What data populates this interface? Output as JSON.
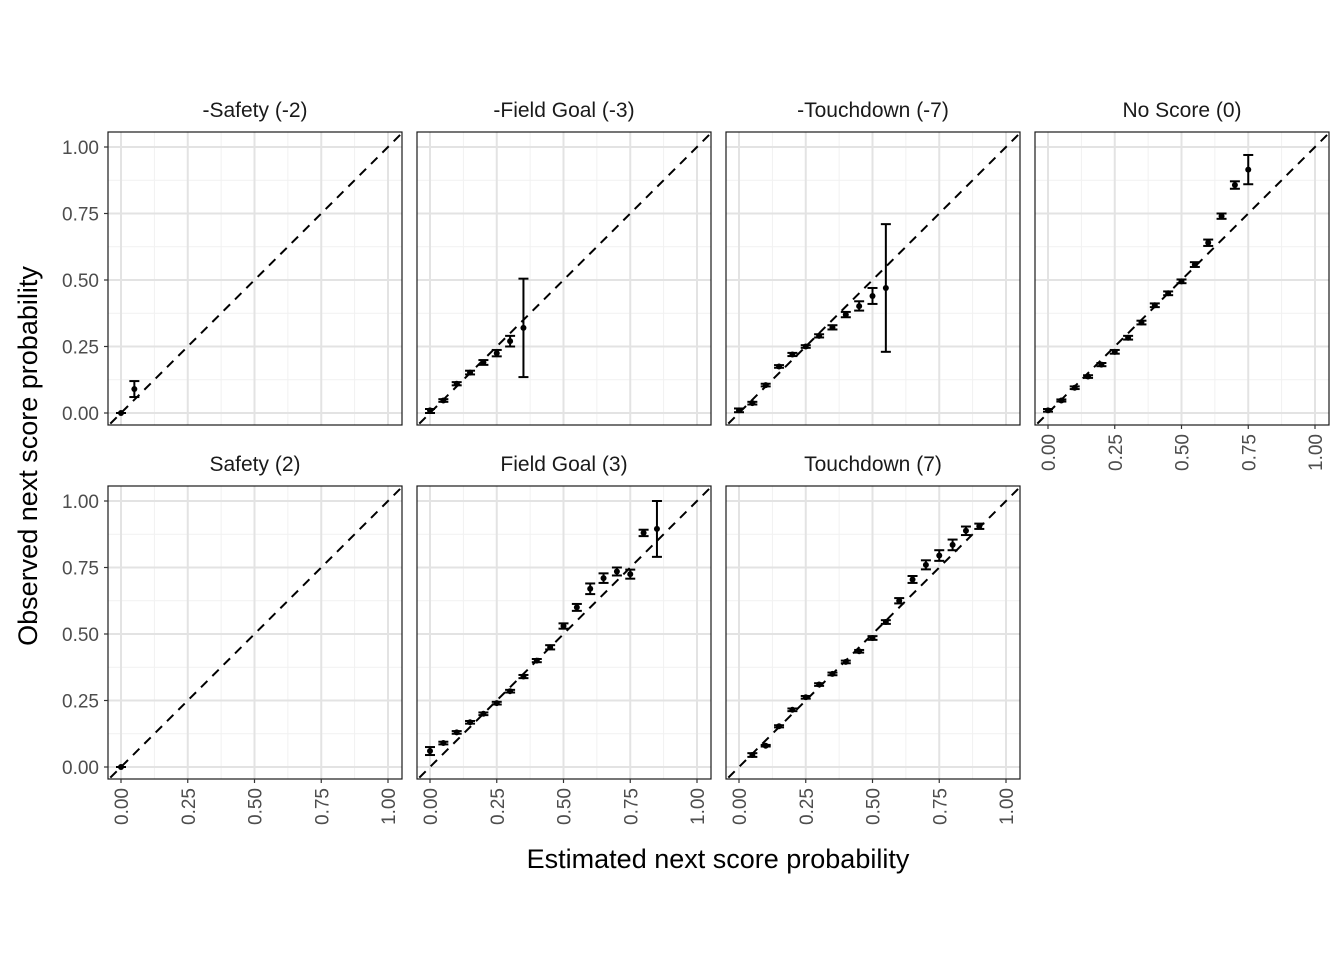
{
  "chart_data": {
    "type": "scatter",
    "layout": "facet-grid 2 rows x 4 columns, shared axes",
    "xlabel": "Estimated next score probability",
    "ylabel": "Observed next score probability",
    "xlim": [
      0,
      1
    ],
    "ylim": [
      0,
      1
    ],
    "ticks": [
      0,
      0.25,
      0.5,
      0.75,
      1
    ],
    "tick_labels": [
      "0.00",
      "0.25",
      "0.50",
      "0.75",
      "1.00"
    ],
    "reference_line": "y = x (dashed)",
    "grid": true,
    "colors": {
      "points": "#000000",
      "grid": "#e3e3e3",
      "frame": "#1a1a1a"
    },
    "panels": [
      {
        "title": "-Safety (-2)",
        "points": [
          {
            "x": 0.0,
            "y": 0.0,
            "lo": 0.0,
            "hi": 0.0
          },
          {
            "x": 0.05,
            "y": 0.09,
            "lo": 0.06,
            "hi": 0.12
          }
        ]
      },
      {
        "title": "-Field Goal (-3)",
        "points": [
          {
            "x": 0.0,
            "y": 0.01,
            "lo": 0.0,
            "hi": 0.015
          },
          {
            "x": 0.05,
            "y": 0.047,
            "lo": 0.042,
            "hi": 0.052
          },
          {
            "x": 0.1,
            "y": 0.11,
            "lo": 0.104,
            "hi": 0.116
          },
          {
            "x": 0.15,
            "y": 0.152,
            "lo": 0.145,
            "hi": 0.159
          },
          {
            "x": 0.2,
            "y": 0.19,
            "lo": 0.181,
            "hi": 0.199
          },
          {
            "x": 0.25,
            "y": 0.225,
            "lo": 0.213,
            "hi": 0.237
          },
          {
            "x": 0.3,
            "y": 0.27,
            "lo": 0.25,
            "hi": 0.29
          },
          {
            "x": 0.35,
            "y": 0.32,
            "lo": 0.135,
            "hi": 0.505
          }
        ]
      },
      {
        "title": "-Touchdown (-7)",
        "points": [
          {
            "x": 0.0,
            "y": 0.01,
            "lo": 0.003,
            "hi": 0.017
          },
          {
            "x": 0.05,
            "y": 0.037,
            "lo": 0.032,
            "hi": 0.042
          },
          {
            "x": 0.1,
            "y": 0.105,
            "lo": 0.1,
            "hi": 0.11
          },
          {
            "x": 0.15,
            "y": 0.175,
            "lo": 0.17,
            "hi": 0.18
          },
          {
            "x": 0.2,
            "y": 0.22,
            "lo": 0.214,
            "hi": 0.226
          },
          {
            "x": 0.25,
            "y": 0.25,
            "lo": 0.245,
            "hi": 0.255
          },
          {
            "x": 0.3,
            "y": 0.29,
            "lo": 0.284,
            "hi": 0.296
          },
          {
            "x": 0.35,
            "y": 0.322,
            "lo": 0.314,
            "hi": 0.33
          },
          {
            "x": 0.4,
            "y": 0.37,
            "lo": 0.36,
            "hi": 0.38
          },
          {
            "x": 0.45,
            "y": 0.402,
            "lo": 0.385,
            "hi": 0.42
          },
          {
            "x": 0.5,
            "y": 0.44,
            "lo": 0.41,
            "hi": 0.47
          },
          {
            "x": 0.55,
            "y": 0.47,
            "lo": 0.23,
            "hi": 0.71
          }
        ]
      },
      {
        "title": "No Score (0)",
        "points": [
          {
            "x": 0.0,
            "y": 0.01,
            "lo": 0.005,
            "hi": 0.015
          },
          {
            "x": 0.05,
            "y": 0.047,
            "lo": 0.043,
            "hi": 0.051
          },
          {
            "x": 0.1,
            "y": 0.095,
            "lo": 0.09,
            "hi": 0.1
          },
          {
            "x": 0.15,
            "y": 0.137,
            "lo": 0.132,
            "hi": 0.142
          },
          {
            "x": 0.2,
            "y": 0.182,
            "lo": 0.176,
            "hi": 0.188
          },
          {
            "x": 0.25,
            "y": 0.23,
            "lo": 0.223,
            "hi": 0.237
          },
          {
            "x": 0.3,
            "y": 0.283,
            "lo": 0.276,
            "hi": 0.29
          },
          {
            "x": 0.35,
            "y": 0.34,
            "lo": 0.333,
            "hi": 0.347
          },
          {
            "x": 0.4,
            "y": 0.405,
            "lo": 0.398,
            "hi": 0.412
          },
          {
            "x": 0.45,
            "y": 0.45,
            "lo": 0.443,
            "hi": 0.457
          },
          {
            "x": 0.5,
            "y": 0.495,
            "lo": 0.488,
            "hi": 0.502
          },
          {
            "x": 0.55,
            "y": 0.558,
            "lo": 0.549,
            "hi": 0.567
          },
          {
            "x": 0.6,
            "y": 0.64,
            "lo": 0.628,
            "hi": 0.652
          },
          {
            "x": 0.65,
            "y": 0.74,
            "lo": 0.73,
            "hi": 0.75
          },
          {
            "x": 0.7,
            "y": 0.857,
            "lo": 0.843,
            "hi": 0.871
          },
          {
            "x": 0.75,
            "y": 0.915,
            "lo": 0.86,
            "hi": 0.97
          }
        ]
      },
      {
        "title": "Safety (2)",
        "points": [
          {
            "x": 0.0,
            "y": 0.0,
            "lo": 0.0,
            "hi": 0.0
          }
        ]
      },
      {
        "title": "Field Goal (3)",
        "points": [
          {
            "x": 0.0,
            "y": 0.06,
            "lo": 0.045,
            "hi": 0.075
          },
          {
            "x": 0.05,
            "y": 0.09,
            "lo": 0.085,
            "hi": 0.095
          },
          {
            "x": 0.1,
            "y": 0.13,
            "lo": 0.125,
            "hi": 0.135
          },
          {
            "x": 0.15,
            "y": 0.168,
            "lo": 0.163,
            "hi": 0.173
          },
          {
            "x": 0.2,
            "y": 0.2,
            "lo": 0.195,
            "hi": 0.205
          },
          {
            "x": 0.25,
            "y": 0.24,
            "lo": 0.235,
            "hi": 0.245
          },
          {
            "x": 0.3,
            "y": 0.285,
            "lo": 0.28,
            "hi": 0.29
          },
          {
            "x": 0.35,
            "y": 0.34,
            "lo": 0.334,
            "hi": 0.346
          },
          {
            "x": 0.4,
            "y": 0.4,
            "lo": 0.394,
            "hi": 0.406
          },
          {
            "x": 0.45,
            "y": 0.45,
            "lo": 0.442,
            "hi": 0.458
          },
          {
            "x": 0.5,
            "y": 0.53,
            "lo": 0.52,
            "hi": 0.54
          },
          {
            "x": 0.55,
            "y": 0.6,
            "lo": 0.587,
            "hi": 0.613
          },
          {
            "x": 0.6,
            "y": 0.67,
            "lo": 0.65,
            "hi": 0.69
          },
          {
            "x": 0.65,
            "y": 0.71,
            "lo": 0.692,
            "hi": 0.728
          },
          {
            "x": 0.7,
            "y": 0.735,
            "lo": 0.72,
            "hi": 0.75
          },
          {
            "x": 0.75,
            "y": 0.725,
            "lo": 0.708,
            "hi": 0.742
          },
          {
            "x": 0.8,
            "y": 0.88,
            "lo": 0.868,
            "hi": 0.892
          },
          {
            "x": 0.85,
            "y": 0.895,
            "lo": 0.79,
            "hi": 1.0
          }
        ]
      },
      {
        "title": "Touchdown (7)",
        "points": [
          {
            "x": 0.05,
            "y": 0.045,
            "lo": 0.038,
            "hi": 0.052
          },
          {
            "x": 0.1,
            "y": 0.08,
            "lo": 0.077,
            "hi": 0.083
          },
          {
            "x": 0.15,
            "y": 0.153,
            "lo": 0.149,
            "hi": 0.157
          },
          {
            "x": 0.2,
            "y": 0.215,
            "lo": 0.21,
            "hi": 0.22
          },
          {
            "x": 0.25,
            "y": 0.262,
            "lo": 0.257,
            "hi": 0.267
          },
          {
            "x": 0.3,
            "y": 0.31,
            "lo": 0.305,
            "hi": 0.315
          },
          {
            "x": 0.35,
            "y": 0.35,
            "lo": 0.345,
            "hi": 0.355
          },
          {
            "x": 0.4,
            "y": 0.395,
            "lo": 0.39,
            "hi": 0.4
          },
          {
            "x": 0.45,
            "y": 0.435,
            "lo": 0.43,
            "hi": 0.44
          },
          {
            "x": 0.5,
            "y": 0.485,
            "lo": 0.478,
            "hi": 0.492
          },
          {
            "x": 0.55,
            "y": 0.545,
            "lo": 0.538,
            "hi": 0.552
          },
          {
            "x": 0.6,
            "y": 0.625,
            "lo": 0.615,
            "hi": 0.635
          },
          {
            "x": 0.65,
            "y": 0.705,
            "lo": 0.692,
            "hi": 0.718
          },
          {
            "x": 0.7,
            "y": 0.76,
            "lo": 0.743,
            "hi": 0.777
          },
          {
            "x": 0.75,
            "y": 0.795,
            "lo": 0.775,
            "hi": 0.815
          },
          {
            "x": 0.8,
            "y": 0.835,
            "lo": 0.815,
            "hi": 0.855
          },
          {
            "x": 0.85,
            "y": 0.888,
            "lo": 0.872,
            "hi": 0.904
          },
          {
            "x": 0.9,
            "y": 0.905,
            "lo": 0.895,
            "hi": 0.915
          }
        ]
      }
    ]
  }
}
